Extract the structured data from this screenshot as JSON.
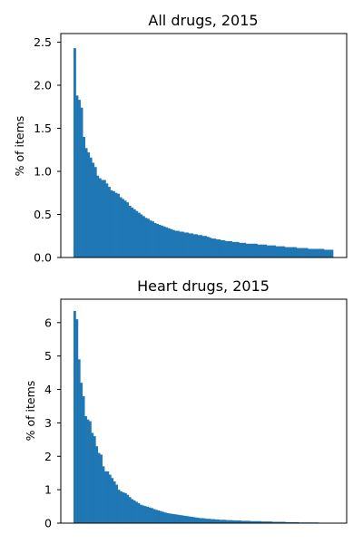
{
  "chart_data": [
    {
      "type": "bar",
      "title": "All drugs, 2015",
      "xlabel": "",
      "ylabel": "% of items",
      "ylim": [
        0,
        2.6
      ],
      "yticks": [
        0.0,
        0.5,
        1.0,
        1.5,
        2.0,
        2.5
      ],
      "ytick_labels": [
        "0.0",
        "0.5",
        "1.0",
        "1.5",
        "2.0",
        "2.5"
      ],
      "grid": false,
      "color": "#1f77b4",
      "values": [
        2.43,
        1.88,
        1.83,
        1.74,
        1.4,
        1.27,
        1.22,
        1.16,
        1.1,
        1.05,
        0.95,
        0.92,
        0.9,
        0.9,
        0.86,
        0.82,
        0.78,
        0.77,
        0.75,
        0.74,
        0.7,
        0.68,
        0.66,
        0.64,
        0.6,
        0.58,
        0.56,
        0.54,
        0.52,
        0.5,
        0.48,
        0.46,
        0.45,
        0.43,
        0.42,
        0.4,
        0.39,
        0.38,
        0.37,
        0.36,
        0.35,
        0.34,
        0.33,
        0.32,
        0.31,
        0.31,
        0.3,
        0.3,
        0.29,
        0.29,
        0.28,
        0.28,
        0.27,
        0.27,
        0.26,
        0.26,
        0.25,
        0.25,
        0.24,
        0.23,
        0.22,
        0.22,
        0.21,
        0.21,
        0.2,
        0.2,
        0.19,
        0.19,
        0.19,
        0.18,
        0.18,
        0.18,
        0.17,
        0.17,
        0.17,
        0.16,
        0.16,
        0.16,
        0.16,
        0.16,
        0.15,
        0.15,
        0.15,
        0.15,
        0.14,
        0.14,
        0.14,
        0.14,
        0.13,
        0.13,
        0.13,
        0.13,
        0.12,
        0.12,
        0.12,
        0.12,
        0.12,
        0.11,
        0.11,
        0.11,
        0.11,
        0.11,
        0.1,
        0.1,
        0.1,
        0.1,
        0.1,
        0.1,
        0.1,
        0.09,
        0.09,
        0.09,
        0.09
      ]
    },
    {
      "type": "bar",
      "title": "Heart drugs, 2015",
      "xlabel": "",
      "ylabel": "% of items",
      "ylim": [
        0,
        6.7
      ],
      "yticks": [
        0,
        1,
        2,
        3,
        4,
        5,
        6
      ],
      "ytick_labels": [
        "0",
        "1",
        "2",
        "3",
        "4",
        "5",
        "6"
      ],
      "grid": false,
      "color": "#1f77b4",
      "values": [
        6.35,
        6.1,
        4.9,
        4.2,
        3.8,
        3.2,
        3.1,
        3.05,
        2.7,
        2.6,
        2.3,
        2.1,
        2.05,
        1.7,
        1.55,
        1.55,
        1.45,
        1.35,
        1.25,
        1.15,
        1.0,
        0.95,
        0.92,
        0.9,
        0.85,
        0.78,
        0.72,
        0.68,
        0.64,
        0.6,
        0.55,
        0.53,
        0.51,
        0.49,
        0.47,
        0.45,
        0.42,
        0.4,
        0.38,
        0.36,
        0.34,
        0.32,
        0.3,
        0.29,
        0.28,
        0.27,
        0.26,
        0.25,
        0.24,
        0.23,
        0.22,
        0.21,
        0.2,
        0.19,
        0.18,
        0.17,
        0.16,
        0.15,
        0.15,
        0.14,
        0.13,
        0.13,
        0.12,
        0.12,
        0.11,
        0.11,
        0.1,
        0.1,
        0.1,
        0.09,
        0.09,
        0.09,
        0.08,
        0.08,
        0.08,
        0.08,
        0.07,
        0.07,
        0.07,
        0.07,
        0.06,
        0.06,
        0.06,
        0.06,
        0.06,
        0.05,
        0.05,
        0.05,
        0.05,
        0.05,
        0.04,
        0.04,
        0.04,
        0.04,
        0.04,
        0.04,
        0.03,
        0.03,
        0.03,
        0.03,
        0.03,
        0.03,
        0.02,
        0.02,
        0.02,
        0.02,
        0.02,
        0.02,
        0.02,
        0.02,
        0.02
      ]
    }
  ]
}
